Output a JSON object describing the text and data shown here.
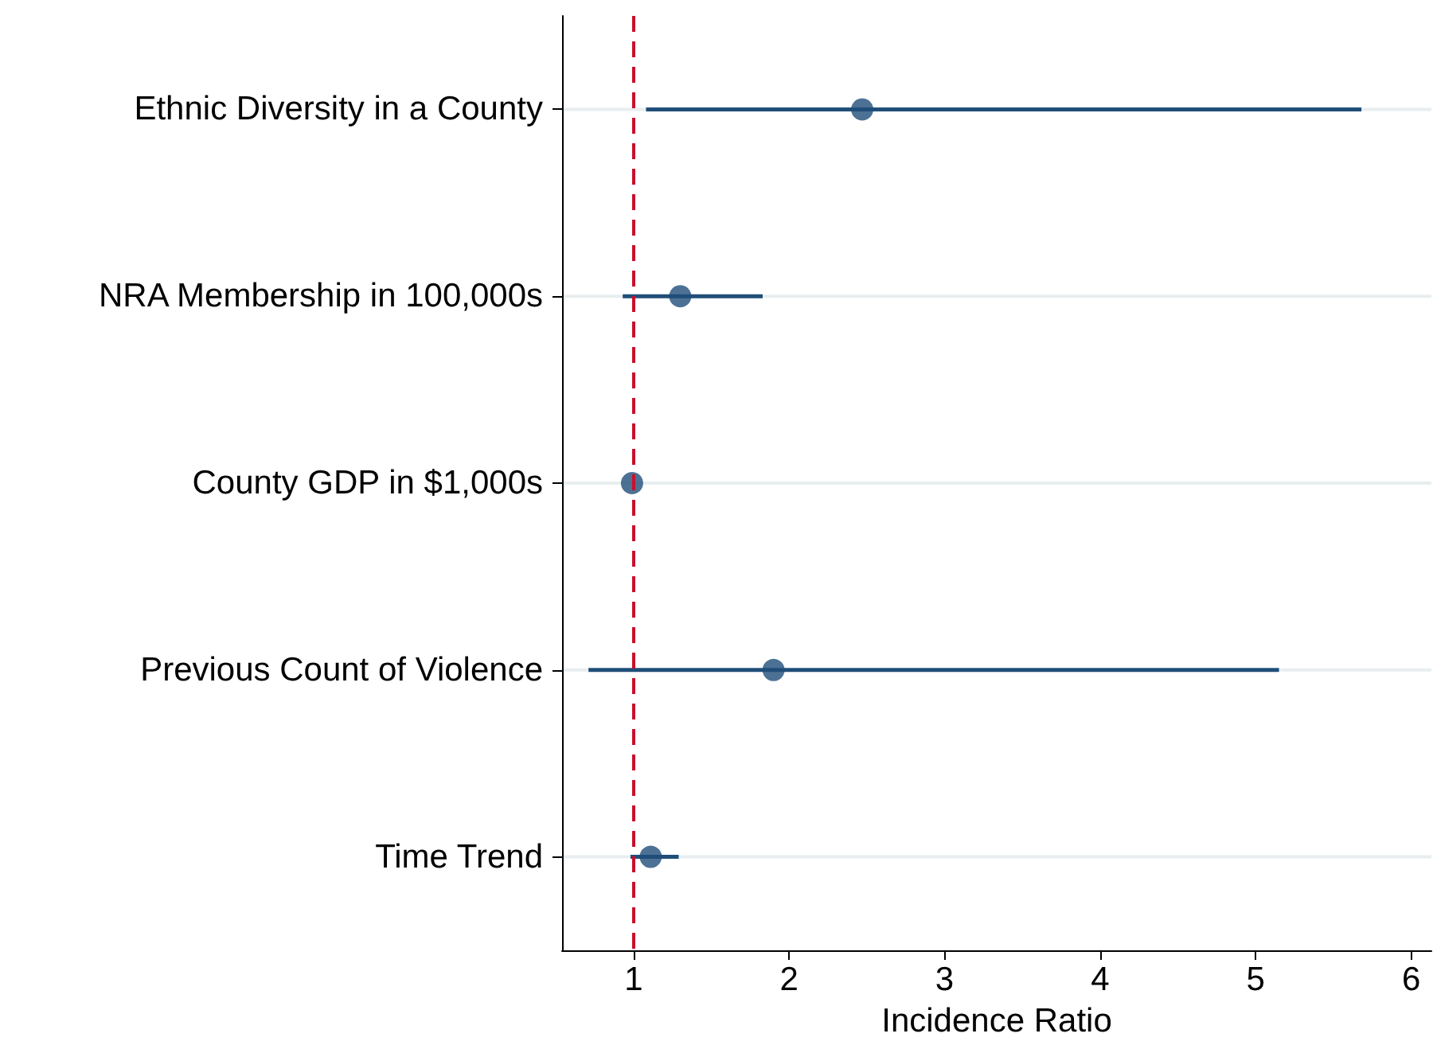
{
  "chart_data": {
    "type": "scatter",
    "orientation": "horizontal",
    "xlabel": "Incidence Ratio",
    "categories": [
      "Ethnic Diversity in a County",
      "NRA Membership in 100,000s",
      "County GDP in $1,000s",
      "Previous Count of Violence",
      "Time Trend"
    ],
    "values": [
      2.47,
      1.3,
      0.99,
      1.9,
      1.11
    ],
    "errors": [
      [
        1.08,
        5.68
      ],
      [
        0.93,
        1.83
      ],
      null,
      [
        0.71,
        5.15
      ],
      [
        0.98,
        1.29
      ]
    ],
    "color": "#1f4e79",
    "xlim": [
      0.54,
      6.13
    ],
    "xticks": [
      1,
      2,
      3,
      4,
      5,
      6
    ],
    "grid": "y",
    "marker": "circle",
    "ref_lines": [
      {
        "axis": "x",
        "value": 1,
        "color": "#c8102e",
        "line_style": "dashed"
      }
    ]
  }
}
